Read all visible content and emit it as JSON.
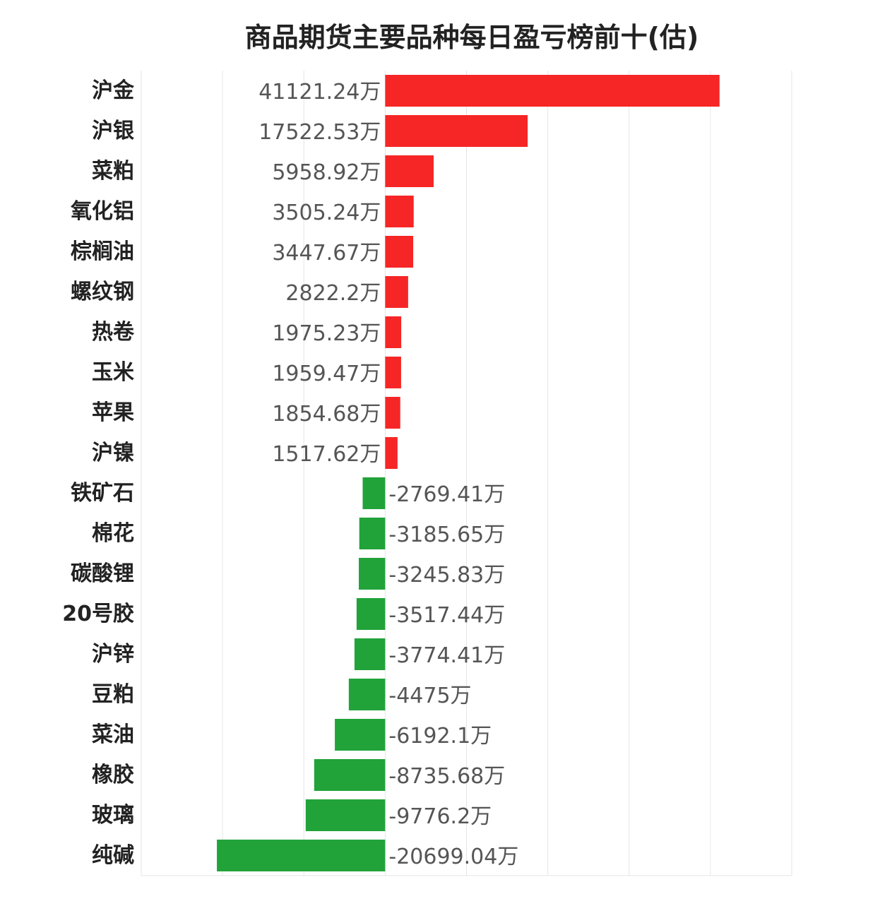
{
  "chart_data": {
    "type": "bar",
    "orientation": "horizontal",
    "title": "商品期货主要品种每日盈亏榜前十(估)",
    "value_suffix": "万",
    "xlim": [
      -30000,
      50000
    ],
    "grid": true,
    "colors": {
      "positive": "#f52625",
      "negative": "#21a33a"
    },
    "categories": [
      "沪金",
      "沪银",
      "菜粕",
      "氧化铝",
      "棕榈油",
      "螺纹钢",
      "热卷",
      "玉米",
      "苹果",
      "沪镍",
      "铁矿石",
      "棉花",
      "碳酸锂",
      "20号胶",
      "沪锌",
      "豆粕",
      "菜油",
      "橡胶",
      "玻璃",
      "纯碱"
    ],
    "values": [
      41121.24,
      17522.53,
      5958.92,
      3505.24,
      3447.67,
      2822.2,
      1975.23,
      1959.47,
      1854.68,
      1517.62,
      -2769.41,
      -3185.65,
      -3245.83,
      -3517.44,
      -3774.41,
      -4475,
      -6192.1,
      -8735.68,
      -9776.2,
      -20699.04
    ]
  }
}
